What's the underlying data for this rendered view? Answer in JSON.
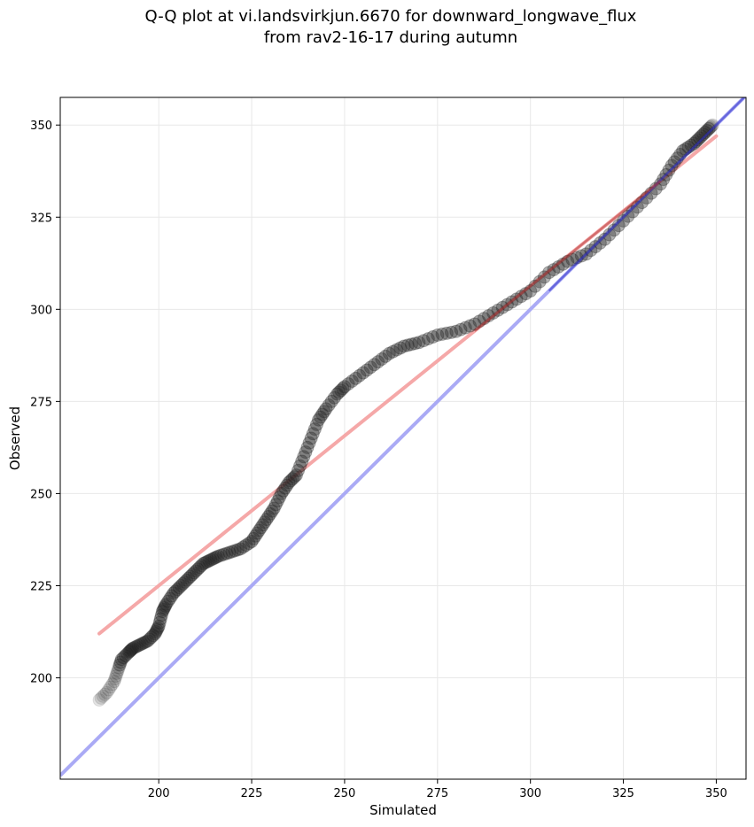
{
  "chart_data": {
    "type": "scatter",
    "title_lines": [
      "Q-Q plot at vi.landsvirkjun.6670 for downward_longwave_flux",
      "from rav2-16-17 during autumn"
    ],
    "xlabel": "Simulated",
    "ylabel": "Observed",
    "xlim": [
      173.5,
      358
    ],
    "ylim": [
      172.5,
      357.5
    ],
    "xticks": [
      200,
      225,
      250,
      275,
      300,
      325,
      350
    ],
    "yticks": [
      200,
      225,
      250,
      275,
      300,
      325,
      350
    ],
    "grid": true,
    "colors": {
      "points": "#222222",
      "identity_line": "#aaaaf5",
      "fit_line": "#f5a8a8",
      "axes": "#000000",
      "grid": "#e8e8e8"
    },
    "identity_line": {
      "x": [
        173.5,
        358
      ],
      "y": [
        173.5,
        358
      ]
    },
    "fit_line": {
      "x": [
        184,
        350
      ],
      "y": [
        212,
        347
      ]
    },
    "quantile_curve": [
      [
        184,
        194
      ],
      [
        186,
        196
      ],
      [
        188,
        199
      ],
      [
        189,
        202
      ],
      [
        190,
        205
      ],
      [
        192,
        207
      ],
      [
        193,
        208
      ],
      [
        195,
        209
      ],
      [
        197,
        210
      ],
      [
        199,
        212
      ],
      [
        200,
        214
      ],
      [
        201,
        218
      ],
      [
        202,
        220
      ],
      [
        204,
        223
      ],
      [
        206,
        225
      ],
      [
        208,
        227
      ],
      [
        210,
        229
      ],
      [
        212,
        231
      ],
      [
        214,
        232
      ],
      [
        216,
        233
      ],
      [
        219,
        234
      ],
      [
        222,
        235
      ],
      [
        225,
        237
      ],
      [
        227,
        240
      ],
      [
        229,
        243
      ],
      [
        231,
        246
      ],
      [
        233,
        250
      ],
      [
        235,
        253
      ],
      [
        237,
        255
      ],
      [
        239,
        260
      ],
      [
        241,
        265
      ],
      [
        243,
        270
      ],
      [
        245,
        273
      ],
      [
        248,
        277
      ],
      [
        250,
        279
      ],
      [
        254,
        282
      ],
      [
        258,
        285
      ],
      [
        262,
        288
      ],
      [
        266,
        290
      ],
      [
        270,
        291
      ],
      [
        275,
        293
      ],
      [
        280,
        294
      ],
      [
        285,
        296
      ],
      [
        290,
        299
      ],
      [
        295,
        302
      ],
      [
        300,
        305
      ],
      [
        305,
        310
      ],
      [
        310,
        313
      ],
      [
        315,
        315
      ],
      [
        320,
        319
      ],
      [
        325,
        324
      ],
      [
        330,
        329
      ],
      [
        335,
        334
      ],
      [
        338,
        339
      ],
      [
        341,
        343
      ],
      [
        344,
        345
      ],
      [
        346,
        347
      ],
      [
        348,
        349
      ],
      [
        349,
        350
      ]
    ]
  }
}
